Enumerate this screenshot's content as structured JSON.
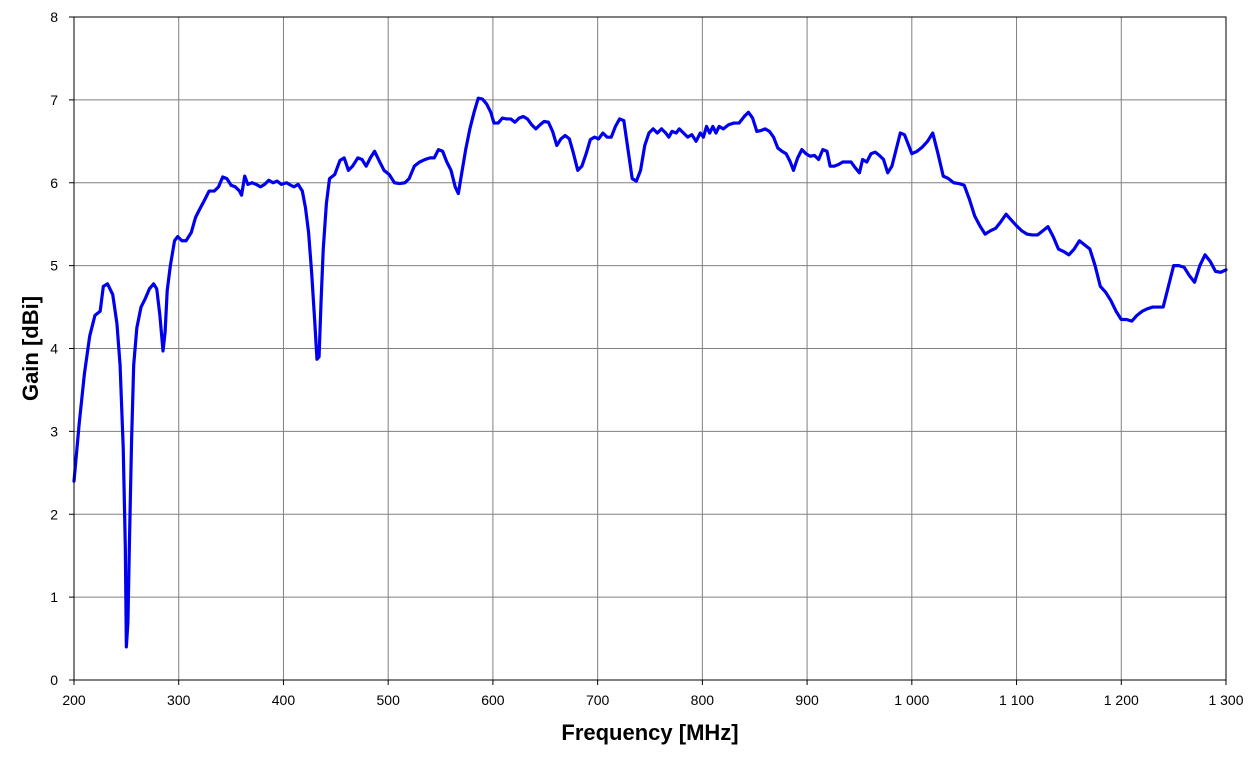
{
  "chart_data": {
    "type": "line",
    "title": "",
    "xlabel": "Frequency [MHz]",
    "ylabel": "Gain [dBi]",
    "xlim": [
      200,
      1300
    ],
    "ylim": [
      0,
      8
    ],
    "x_ticks": [
      200,
      300,
      400,
      500,
      600,
      700,
      800,
      900,
      1000,
      1100,
      1200,
      1300
    ],
    "x_tick_labels": [
      "200",
      "300",
      "400",
      "500",
      "600",
      "700",
      "800",
      "900",
      "1 000",
      "1 100",
      "1 200",
      "1 300"
    ],
    "y_ticks": [
      0,
      1,
      2,
      3,
      4,
      5,
      6,
      7,
      8
    ],
    "y_tick_labels": [
      "0",
      "1",
      "2",
      "3",
      "4",
      "5",
      "6",
      "7",
      "8"
    ],
    "grid": true,
    "legend": "none",
    "series": [
      {
        "color": "#0000ee",
        "points": [
          [
            200,
            2.4
          ],
          [
            205,
            3.1
          ],
          [
            210,
            3.7
          ],
          [
            215,
            4.15
          ],
          [
            220,
            4.4
          ],
          [
            225,
            4.45
          ],
          [
            228,
            4.75
          ],
          [
            232,
            4.78
          ],
          [
            237,
            4.65
          ],
          [
            241,
            4.3
          ],
          [
            244,
            3.8
          ],
          [
            247,
            2.8
          ],
          [
            249,
            1.6
          ],
          [
            250,
            0.4
          ],
          [
            251.5,
            0.7
          ],
          [
            253,
            1.7
          ],
          [
            255,
            2.9
          ],
          [
            257,
            3.8
          ],
          [
            260,
            4.25
          ],
          [
            264,
            4.5
          ],
          [
            268,
            4.6
          ],
          [
            272,
            4.72
          ],
          [
            276,
            4.78
          ],
          [
            279,
            4.72
          ],
          [
            282,
            4.4
          ],
          [
            285,
            3.97
          ],
          [
            287,
            4.2
          ],
          [
            289,
            4.7
          ],
          [
            292,
            5.0
          ],
          [
            296,
            5.3
          ],
          [
            299,
            5.35
          ],
          [
            303,
            5.3
          ],
          [
            307,
            5.3
          ],
          [
            312,
            5.4
          ],
          [
            316,
            5.58
          ],
          [
            320,
            5.68
          ],
          [
            325,
            5.8
          ],
          [
            329,
            5.9
          ],
          [
            334,
            5.9
          ],
          [
            338,
            5.95
          ],
          [
            342,
            6.07
          ],
          [
            346,
            6.05
          ],
          [
            350,
            5.97
          ],
          [
            354,
            5.95
          ],
          [
            358,
            5.9
          ],
          [
            360,
            5.85
          ],
          [
            363,
            6.08
          ],
          [
            366,
            5.98
          ],
          [
            370,
            6.0
          ],
          [
            374,
            5.98
          ],
          [
            378,
            5.95
          ],
          [
            382,
            5.98
          ],
          [
            386,
            6.03
          ],
          [
            390,
            6.0
          ],
          [
            394,
            6.02
          ],
          [
            398,
            5.98
          ],
          [
            403,
            6.0
          ],
          [
            407,
            5.97
          ],
          [
            410,
            5.95
          ],
          [
            414,
            5.98
          ],
          [
            418,
            5.9
          ],
          [
            421,
            5.7
          ],
          [
            424,
            5.4
          ],
          [
            427,
            4.9
          ],
          [
            430,
            4.3
          ],
          [
            432,
            3.87
          ],
          [
            434,
            3.9
          ],
          [
            436,
            4.6
          ],
          [
            438,
            5.2
          ],
          [
            441,
            5.75
          ],
          [
            444,
            6.05
          ],
          [
            449,
            6.1
          ],
          [
            454,
            6.27
          ],
          [
            458,
            6.3
          ],
          [
            462,
            6.15
          ],
          [
            466,
            6.2
          ],
          [
            471,
            6.3
          ],
          [
            475,
            6.28
          ],
          [
            479,
            6.2
          ],
          [
            483,
            6.3
          ],
          [
            487,
            6.38
          ],
          [
            492,
            6.25
          ],
          [
            496,
            6.15
          ],
          [
            501,
            6.1
          ],
          [
            506,
            6.0
          ],
          [
            511,
            5.99
          ],
          [
            516,
            6.0
          ],
          [
            520,
            6.05
          ],
          [
            525,
            6.2
          ],
          [
            530,
            6.25
          ],
          [
            535,
            6.28
          ],
          [
            540,
            6.3
          ],
          [
            544,
            6.3
          ],
          [
            548,
            6.4
          ],
          [
            552,
            6.38
          ],
          [
            556,
            6.25
          ],
          [
            560,
            6.15
          ],
          [
            564,
            5.95
          ],
          [
            567,
            5.87
          ],
          [
            570,
            6.1
          ],
          [
            574,
            6.4
          ],
          [
            578,
            6.65
          ],
          [
            582,
            6.85
          ],
          [
            586,
            7.02
          ],
          [
            590,
            7.01
          ],
          [
            594,
            6.95
          ],
          [
            598,
            6.85
          ],
          [
            601,
            6.72
          ],
          [
            605,
            6.72
          ],
          [
            609,
            6.78
          ],
          [
            613,
            6.77
          ],
          [
            617,
            6.77
          ],
          [
            621,
            6.73
          ],
          [
            625,
            6.78
          ],
          [
            629,
            6.8
          ],
          [
            633,
            6.77
          ],
          [
            637,
            6.7
          ],
          [
            641,
            6.65
          ],
          [
            645,
            6.7
          ],
          [
            649,
            6.74
          ],
          [
            653,
            6.73
          ],
          [
            657,
            6.62
          ],
          [
            661,
            6.45
          ],
          [
            665,
            6.53
          ],
          [
            669,
            6.57
          ],
          [
            673,
            6.53
          ],
          [
            677,
            6.35
          ],
          [
            681,
            6.15
          ],
          [
            685,
            6.2
          ],
          [
            689,
            6.35
          ],
          [
            693,
            6.52
          ],
          [
            697,
            6.55
          ],
          [
            701,
            6.53
          ],
          [
            705,
            6.6
          ],
          [
            709,
            6.55
          ],
          [
            713,
            6.55
          ],
          [
            717,
            6.68
          ],
          [
            721,
            6.77
          ],
          [
            725,
            6.75
          ],
          [
            729,
            6.4
          ],
          [
            733,
            6.05
          ],
          [
            737,
            6.02
          ],
          [
            741,
            6.15
          ],
          [
            745,
            6.45
          ],
          [
            749,
            6.6
          ],
          [
            753,
            6.65
          ],
          [
            757,
            6.6
          ],
          [
            761,
            6.65
          ],
          [
            765,
            6.6
          ],
          [
            768,
            6.55
          ],
          [
            771,
            6.62
          ],
          [
            775,
            6.6
          ],
          [
            778,
            6.65
          ],
          [
            782,
            6.6
          ],
          [
            786,
            6.55
          ],
          [
            790,
            6.58
          ],
          [
            794,
            6.5
          ],
          [
            798,
            6.6
          ],
          [
            801,
            6.55
          ],
          [
            804,
            6.68
          ],
          [
            807,
            6.6
          ],
          [
            810,
            6.68
          ],
          [
            813,
            6.6
          ],
          [
            816,
            6.68
          ],
          [
            820,
            6.65
          ],
          [
            825,
            6.7
          ],
          [
            830,
            6.72
          ],
          [
            835,
            6.72
          ],
          [
            840,
            6.8
          ],
          [
            844,
            6.85
          ],
          [
            848,
            6.78
          ],
          [
            852,
            6.62
          ],
          [
            856,
            6.63
          ],
          [
            860,
            6.65
          ],
          [
            864,
            6.62
          ],
          [
            868,
            6.55
          ],
          [
            872,
            6.42
          ],
          [
            876,
            6.38
          ],
          [
            880,
            6.35
          ],
          [
            884,
            6.25
          ],
          [
            887,
            6.15
          ],
          [
            891,
            6.3
          ],
          [
            895,
            6.4
          ],
          [
            899,
            6.35
          ],
          [
            903,
            6.32
          ],
          [
            907,
            6.33
          ],
          [
            911,
            6.28
          ],
          [
            915,
            6.4
          ],
          [
            919,
            6.38
          ],
          [
            922,
            6.2
          ],
          [
            926,
            6.2
          ],
          [
            930,
            6.22
          ],
          [
            934,
            6.25
          ],
          [
            938,
            6.25
          ],
          [
            942,
            6.25
          ],
          [
            946,
            6.18
          ],
          [
            950,
            6.12
          ],
          [
            953,
            6.28
          ],
          [
            957,
            6.25
          ],
          [
            961,
            6.35
          ],
          [
            965,
            6.37
          ],
          [
            969,
            6.33
          ],
          [
            973,
            6.28
          ],
          [
            977,
            6.12
          ],
          [
            981,
            6.2
          ],
          [
            985,
            6.4
          ],
          [
            989,
            6.6
          ],
          [
            993,
            6.58
          ],
          [
            997,
            6.45
          ],
          [
            1000,
            6.35
          ],
          [
            1005,
            6.38
          ],
          [
            1010,
            6.43
          ],
          [
            1015,
            6.5
          ],
          [
            1020,
            6.6
          ],
          [
            1025,
            6.35
          ],
          [
            1030,
            6.08
          ],
          [
            1035,
            6.05
          ],
          [
            1040,
            6.0
          ],
          [
            1045,
            5.99
          ],
          [
            1050,
            5.97
          ],
          [
            1055,
            5.8
          ],
          [
            1060,
            5.6
          ],
          [
            1065,
            5.48
          ],
          [
            1070,
            5.38
          ],
          [
            1075,
            5.42
          ],
          [
            1080,
            5.45
          ],
          [
            1085,
            5.53
          ],
          [
            1090,
            5.62
          ],
          [
            1095,
            5.55
          ],
          [
            1100,
            5.48
          ],
          [
            1105,
            5.42
          ],
          [
            1110,
            5.38
          ],
          [
            1115,
            5.37
          ],
          [
            1120,
            5.37
          ],
          [
            1125,
            5.42
          ],
          [
            1130,
            5.47
          ],
          [
            1135,
            5.35
          ],
          [
            1140,
            5.2
          ],
          [
            1145,
            5.17
          ],
          [
            1150,
            5.13
          ],
          [
            1155,
            5.2
          ],
          [
            1160,
            5.3
          ],
          [
            1165,
            5.25
          ],
          [
            1170,
            5.2
          ],
          [
            1175,
            5.0
          ],
          [
            1180,
            4.75
          ],
          [
            1185,
            4.68
          ],
          [
            1190,
            4.58
          ],
          [
            1195,
            4.45
          ],
          [
            1200,
            4.35
          ],
          [
            1205,
            4.35
          ],
          [
            1210,
            4.33
          ],
          [
            1215,
            4.4
          ],
          [
            1220,
            4.45
          ],
          [
            1225,
            4.48
          ],
          [
            1230,
            4.5
          ],
          [
            1235,
            4.5
          ],
          [
            1240,
            4.5
          ],
          [
            1245,
            4.75
          ],
          [
            1250,
            5.0
          ],
          [
            1255,
            5.0
          ],
          [
            1260,
            4.98
          ],
          [
            1265,
            4.88
          ],
          [
            1270,
            4.8
          ],
          [
            1275,
            5.0
          ],
          [
            1280,
            5.13
          ],
          [
            1285,
            5.05
          ],
          [
            1290,
            4.93
          ],
          [
            1295,
            4.92
          ],
          [
            1300,
            4.95
          ]
        ]
      }
    ]
  }
}
